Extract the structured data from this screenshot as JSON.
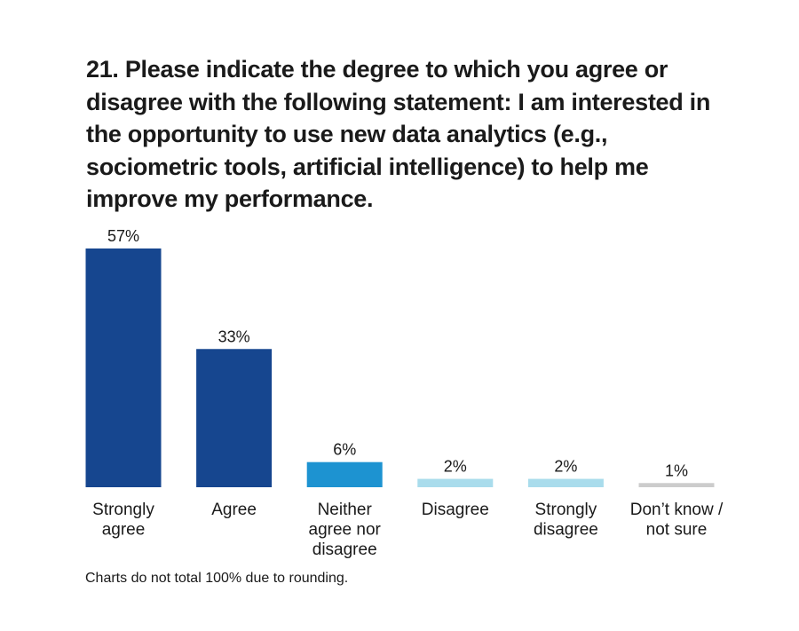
{
  "chart_data": {
    "type": "bar",
    "title": "21. Please indicate the degree to which you agree or disagree with the following statement: I am interested in the opportunity to use new data analytics (e.g., sociometric tools, artificial intelligence) to help me improve my performance.",
    "categories": [
      [
        "Strongly",
        "agree"
      ],
      [
        "Agree"
      ],
      [
        "Neither",
        "agree nor",
        "disagree"
      ],
      [
        "Disagree"
      ],
      [
        "Strongly",
        "disagree"
      ],
      [
        "Don’t know /",
        "not sure"
      ]
    ],
    "values": [
      57,
      33,
      6,
      2,
      2,
      1
    ],
    "value_labels": [
      "57%",
      "33%",
      "6%",
      "2%",
      "2%",
      "1%"
    ],
    "colors": [
      "#16468f",
      "#16468f",
      "#1d93d1",
      "#a9dcec",
      "#a9dcec",
      "#cccccc"
    ],
    "ylim": [
      0,
      57
    ],
    "grid": false,
    "legend": "none"
  },
  "footnote": "Charts do not total 100% due to rounding."
}
